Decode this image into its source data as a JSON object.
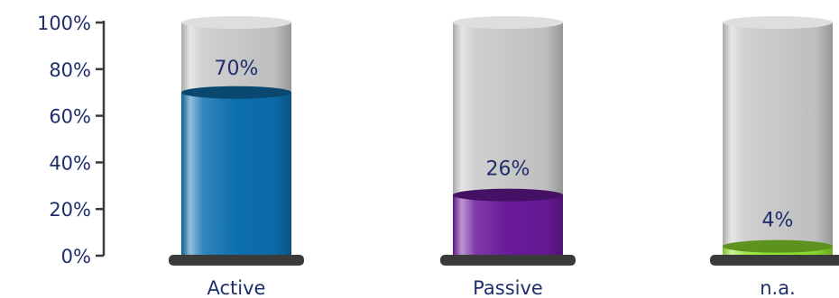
{
  "chart_data": {
    "type": "bar",
    "style": "3d-cylinder",
    "categories": [
      "Active",
      "Passive",
      "n.a."
    ],
    "values": [
      70,
      26,
      4
    ],
    "data_labels": [
      "70%",
      "26%",
      "4%"
    ],
    "colors": [
      "#0d6fae",
      "#6a1a9a",
      "#8fe030"
    ],
    "ylim": [
      0,
      100
    ],
    "yticks": [
      0,
      20,
      40,
      60,
      80,
      100
    ],
    "ytick_labels": [
      "0%",
      "20%",
      "40%",
      "60%",
      "80%",
      "100%"
    ],
    "grid": false,
    "legend": false,
    "background_cylinder_color": "#c8c8c8",
    "base_color": "#3a3a3a"
  }
}
